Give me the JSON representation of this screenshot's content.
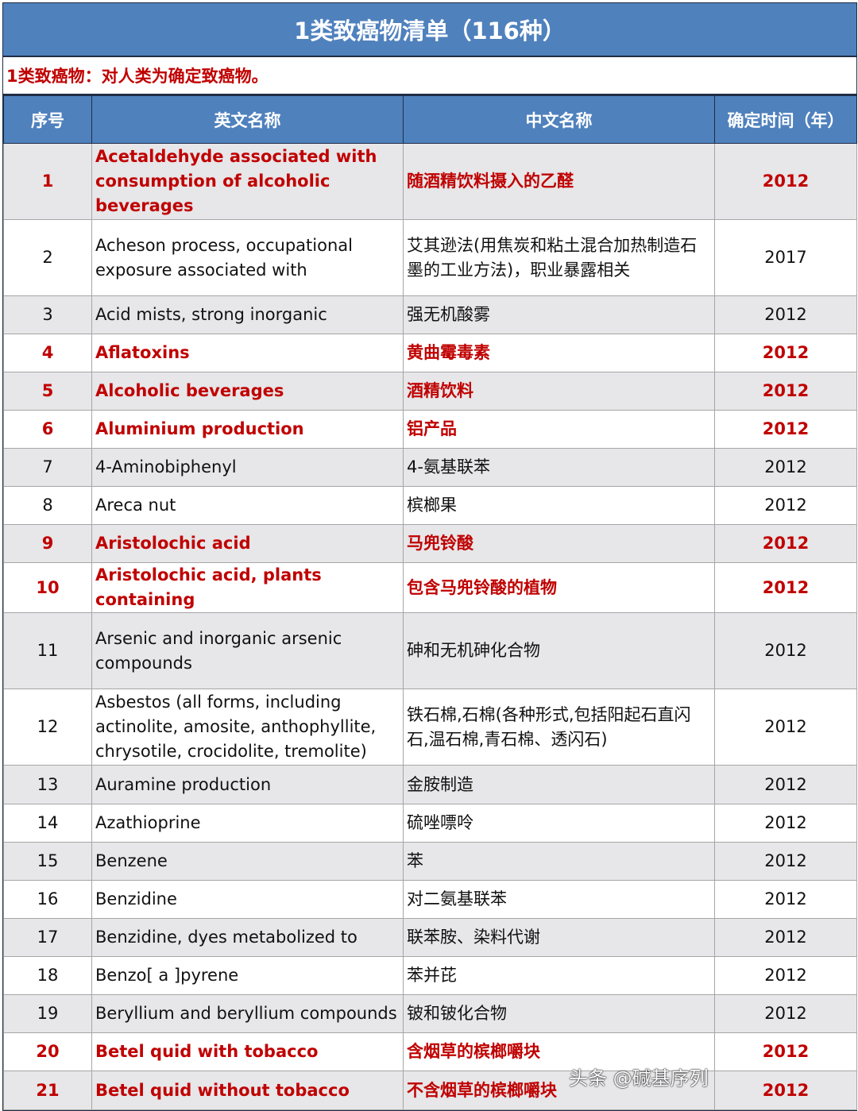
{
  "title": "1类致癌物清单（116种）",
  "subtitle": "1类致癌物：对人类为确定致癌物。",
  "columns": [
    "序号",
    "英文名称",
    "中文名称",
    "确定时间（年）"
  ],
  "colors": {
    "header": "#4f81bd",
    "highlight": "#c00000",
    "stripe": "#e7e6e8"
  },
  "rows": [
    {
      "no": "1",
      "en": "Acetaldehyde associated with consumption of alcoholic beverages",
      "zh": "随酒精饮料摄入的乙醛",
      "year": "2012",
      "highlight": true
    },
    {
      "no": "2",
      "en": "Acheson process, occupational exposure associated with",
      "zh": "艾其逊法(用焦炭和粘土混合加热制造石墨的工业方法)，职业暴露相关",
      "year": "2017",
      "highlight": false
    },
    {
      "no": "3",
      "en": "Acid mists, strong inorganic",
      "zh": "强无机酸雾",
      "year": "2012",
      "highlight": false
    },
    {
      "no": "4",
      "en": "Aflatoxins",
      "zh": "黄曲霉毒素",
      "year": "2012",
      "highlight": true
    },
    {
      "no": "5",
      "en": "Alcoholic beverages",
      "zh": "酒精饮料",
      "year": "2012",
      "highlight": true
    },
    {
      "no": "6",
      "en": "Aluminium production",
      "zh": "铝产品",
      "year": "2012",
      "highlight": true
    },
    {
      "no": "7",
      "en": "4-Aminobiphenyl",
      "zh": "4-氨基联苯",
      "year": "2012",
      "highlight": false
    },
    {
      "no": "8",
      "en": "Areca nut",
      "zh": "槟榔果",
      "year": "2012",
      "highlight": false
    },
    {
      "no": "9",
      "en": "Aristolochic acid",
      "zh": "马兜铃酸",
      "year": "2012",
      "highlight": true
    },
    {
      "no": "10",
      "en": "Aristolochic acid, plants containing",
      "zh": "包含马兜铃酸的植物",
      "year": "2012",
      "highlight": true
    },
    {
      "no": "11",
      "en": "Arsenic and inorganic arsenic compounds",
      "zh": "砷和无机砷化合物",
      "year": "2012",
      "highlight": false
    },
    {
      "no": "12",
      "en": "Asbestos (all forms, including actinolite, amosite, anthophyllite, chrysotile, crocidolite, tremolite)",
      "zh": "铁石棉,石棉(各种形式,包括阳起石直闪石,温石棉,青石棉、透闪石)",
      "year": "2012",
      "highlight": false
    },
    {
      "no": "13",
      "en": "Auramine production",
      "zh": "金胺制造",
      "year": "2012",
      "highlight": false
    },
    {
      "no": "14",
      "en": "Azathioprine",
      "zh": "硫唑嘌呤",
      "year": "2012",
      "highlight": false
    },
    {
      "no": "15",
      "en": "Benzene",
      "zh": "苯",
      "year": "2012",
      "highlight": false
    },
    {
      "no": "16",
      "en": "Benzidine",
      "zh": "对二氨基联苯",
      "year": "2012",
      "highlight": false
    },
    {
      "no": "17",
      "en": "Benzidine, dyes metabolized to",
      "zh": "联苯胺、染料代谢",
      "year": "2012",
      "highlight": false
    },
    {
      "no": "18",
      "en": "Benzo[ a ]pyrene",
      "zh": "苯并芘",
      "year": "2012",
      "highlight": false
    },
    {
      "no": "19",
      "en": "Beryllium and beryllium compounds",
      "zh": "铍和铍化合物",
      "year": "2012",
      "highlight": false
    },
    {
      "no": "20",
      "en": "Betel quid with tobacco",
      "zh": "含烟草的槟榔嚼块",
      "year": "2012",
      "highlight": true
    },
    {
      "no": "21",
      "en": "Betel quid without tobacco",
      "zh": "不含烟草的槟榔嚼块",
      "year": "2012",
      "highlight": true
    }
  ],
  "watermark": "头条 @碱基序列"
}
